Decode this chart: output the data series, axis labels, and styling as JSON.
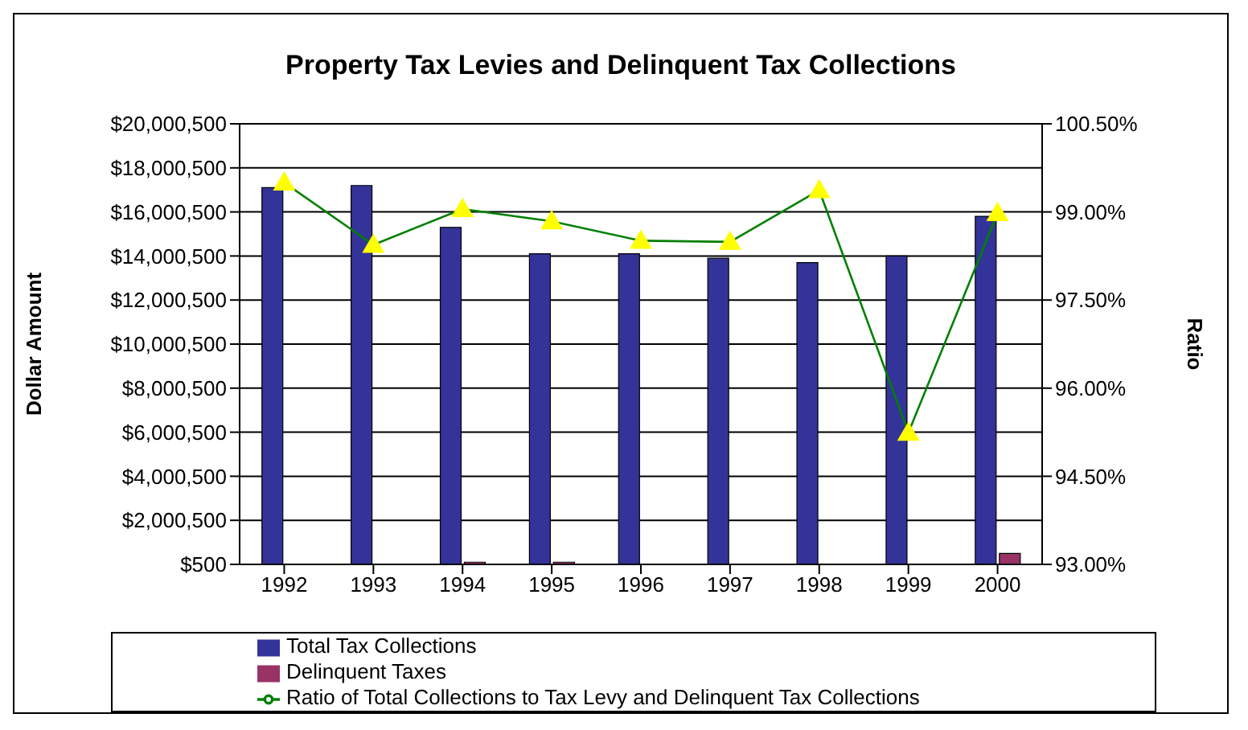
{
  "chart_data": {
    "type": "bar",
    "title": "Property Tax Levies and Delinquent Tax Collections",
    "ylabel": "Dollar Amount",
    "y2label": "Ratio",
    "categories": [
      "1992",
      "1993",
      "1994",
      "1995",
      "1996",
      "1997",
      "1998",
      "1999",
      "2000"
    ],
    "series": [
      {
        "name": "Total Tax Collections",
        "color": "#333399",
        "values": [
          17100000,
          17200000,
          15300000,
          14100000,
          14100000,
          13900000,
          13700000,
          14000000,
          15800000
        ]
      },
      {
        "name": "Delinquent Taxes",
        "color": "#993366",
        "values": [
          null,
          null,
          100000,
          100000,
          null,
          null,
          null,
          null,
          500000
        ]
      },
      {
        "name": "Ratio of Total Collections to Tax Levy and Delinquent Tax Collections",
        "type": "line",
        "axis": "y2",
        "color": "#008000",
        "values": [
          99.5,
          98.44,
          99.05,
          98.84,
          98.51,
          98.49,
          99.37,
          95.24,
          98.98
        ]
      }
    ],
    "ylim": [
      500,
      20000500
    ],
    "yticks": [
      {
        "value": 500,
        "label": "$500"
      },
      {
        "value": 2000500,
        "label": "$2,000,500"
      },
      {
        "value": 4000500,
        "label": "$4,000,500"
      },
      {
        "value": 6000500,
        "label": "$6,000,500"
      },
      {
        "value": 8000500,
        "label": "$8,000,500"
      },
      {
        "value": 10000500,
        "label": "$10,000,500"
      },
      {
        "value": 12000500,
        "label": "$12,000,500"
      },
      {
        "value": 14000500,
        "label": "$14,000,500"
      },
      {
        "value": 16000500,
        "label": "$16,000,500"
      },
      {
        "value": 18000500,
        "label": "$18,000,500"
      },
      {
        "value": 20000500,
        "label": "$20,000,500"
      }
    ],
    "y2lim": [
      93,
      100.5
    ],
    "y2ticks": [
      {
        "value": 93,
        "label": "93.00%"
      },
      {
        "value": 94.5,
        "label": "94.50%"
      },
      {
        "value": 96,
        "label": "96.00%"
      },
      {
        "value": 97.5,
        "label": "97.50%"
      },
      {
        "value": 99,
        "label": "99.00%"
      },
      {
        "value": 100.5,
        "label": "100.50%"
      }
    ],
    "grid": "y",
    "legend": "bottom",
    "marker": "triangle",
    "line_style": "solid"
  }
}
